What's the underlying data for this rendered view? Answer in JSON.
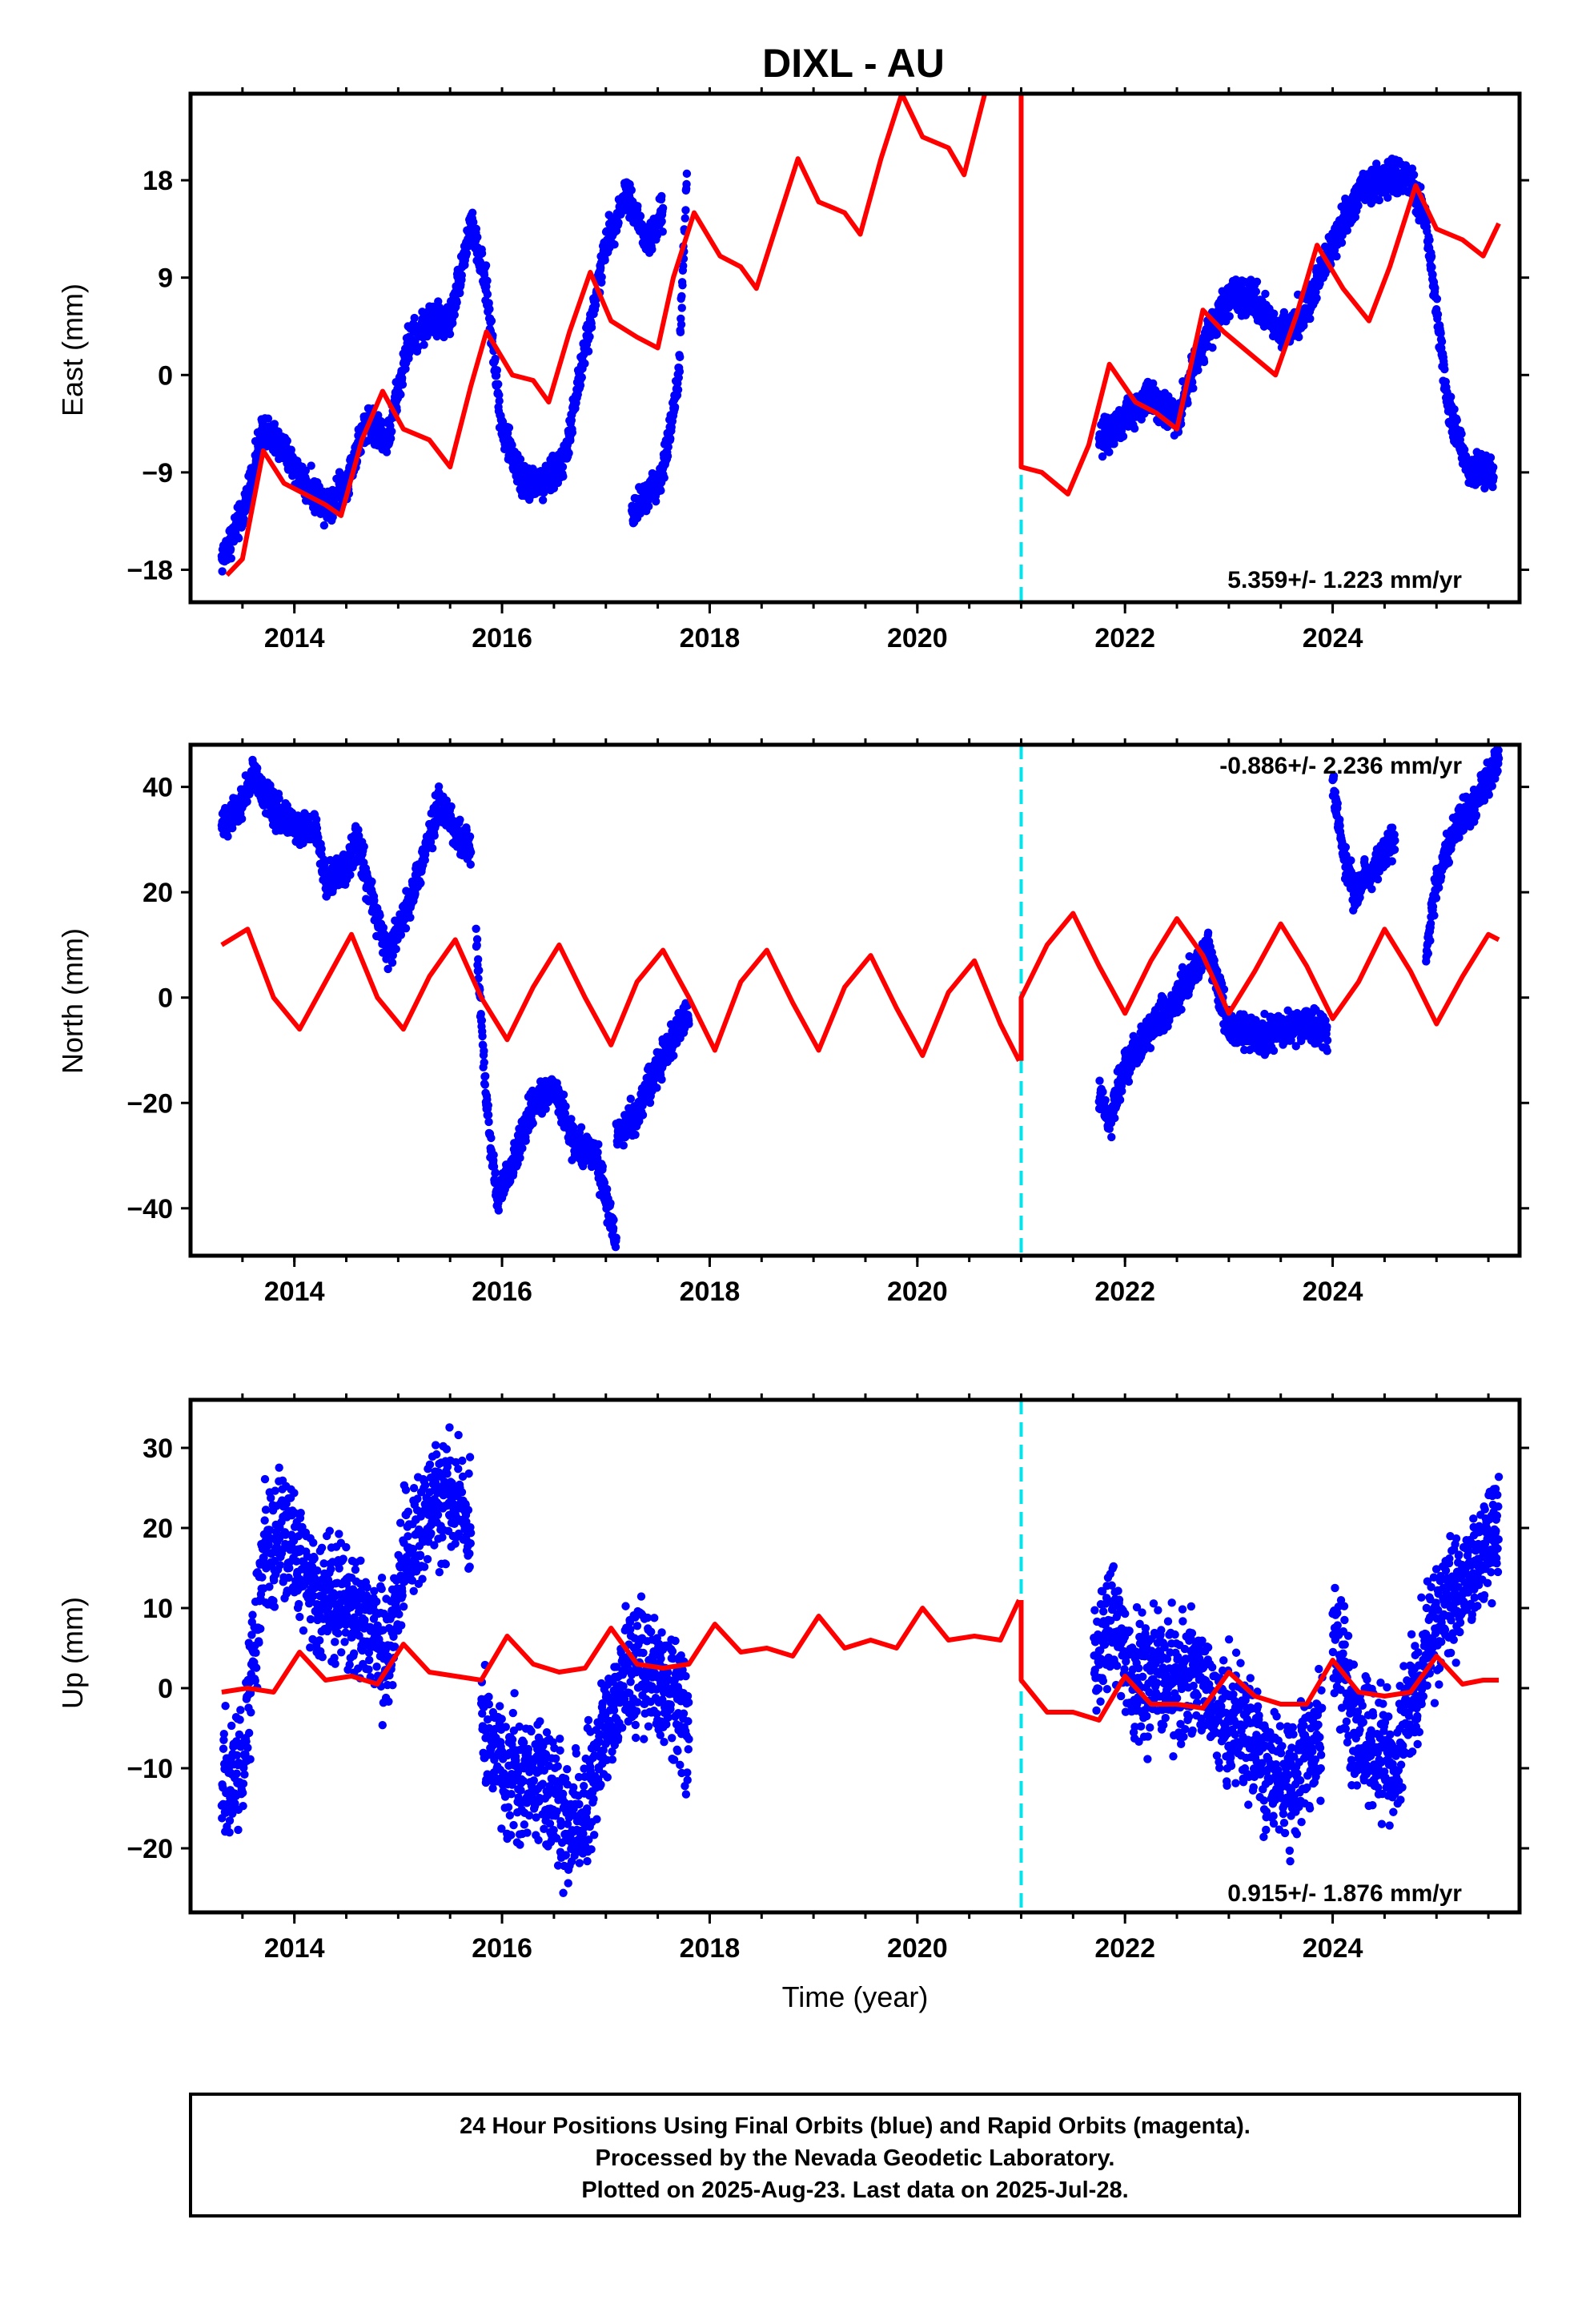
{
  "figure": {
    "title": "DIXL - AU",
    "xlabel": "Time (year)",
    "footer": [
      "24 Hour Positions Using Final Orbits (blue) and Rapid Orbits (magenta).",
      "Processed by the Nevada Geodetic Laboratory.",
      "Plotted on 2025-Aug-23. Last data on 2025-Jul-28."
    ]
  },
  "colors": {
    "final_orbits": "#0000ff",
    "model_fit": "#ff0000",
    "step_marker": "#00e5ee"
  },
  "chart_data": [
    {
      "type": "scatter",
      "ylabel": "East (mm)",
      "xlim": [
        2013.0,
        2025.8
      ],
      "ylim": [
        -21,
        26
      ],
      "yticks": [
        -18,
        -9,
        0,
        9,
        18
      ],
      "xticks": [
        2014,
        2016,
        2018,
        2020,
        2022,
        2024
      ],
      "grid": false,
      "step_epoch": 2021.0,
      "rate_label": "5.359+/- 1.223 mm/yr",
      "rate_position": "bottom-right",
      "series": [
        {
          "kind": "points",
          "segments": [
            {
              "x": [
                2013.3,
                2013.5,
                2013.7,
                2013.9,
                2014.1,
                2014.3,
                2014.5,
                2014.7,
                2014.9,
                2015.1,
                2015.3,
                2015.5,
                2015.7,
                2015.85,
                2016.0,
                2016.2,
                2016.4,
                2016.6,
                2016.85,
                2017.0,
                2017.2,
                2017.4,
                2017.55
              ],
              "y": [
                -17,
                -13,
                -5,
                -7,
                -10,
                -12,
                -10,
                -4,
                -6,
                3,
                5,
                5,
                14,
                8,
                -5,
                -10,
                -10,
                -8,
                5,
                12,
                17,
                12,
                15
              ]
            },
            {
              "x": [
                2017.25,
                2017.4,
                2017.55,
                2017.7,
                2017.78
              ],
              "y": [
                -13,
                -11,
                -9,
                0,
                18
              ]
            },
            {
              "x": [
                2021.75,
                2022.0,
                2022.25,
                2022.5,
                2022.75,
                2023.0,
                2023.25,
                2023.5,
                2023.75,
                2024.0,
                2024.25,
                2024.5,
                2024.75,
                2024.9,
                2025.1,
                2025.3,
                2025.55
              ],
              "y": [
                -6,
                -4,
                -2,
                -4,
                3,
                7,
                7,
                4,
                6,
                12,
                17,
                18,
                18,
                14,
                -2,
                -9,
                -9
              ]
            }
          ]
        },
        {
          "kind": "line",
          "segments": [
            {
              "x": [
                2013.35,
                2013.5,
                2013.7,
                2013.9,
                2014.1,
                2014.3,
                2014.45,
                2014.65,
                2014.85,
                2015.05,
                2015.3,
                2015.5,
                2015.7,
                2015.85,
                2016.1,
                2016.3,
                2016.45,
                2016.65,
                2016.85,
                2017.05,
                2017.3,
                2017.5,
                2017.65,
                2017.85,
                2018.1,
                2018.3,
                2018.45,
                2018.65,
                2018.85,
                2019.05,
                2019.3,
                2019.45,
                2019.65,
                2019.85,
                2020.05,
                2020.3,
                2020.45,
                2020.65
              ],
              "y": [
                -18.5,
                -17,
                -7,
                -10,
                -11,
                -12,
                -13,
                -6,
                -1.5,
                -5,
                -6,
                -8.5,
                -1,
                4,
                0,
                -0.5,
                -2.5,
                4,
                9.5,
                5,
                3.5,
                2.5,
                9,
                15,
                11,
                10,
                8,
                14,
                20,
                16,
                15,
                13,
                20,
                26,
                22,
                21,
                18.5,
                26
              ]
            },
            {
              "x": [
                2021.0,
                2021.0,
                2021.2,
                2021.45,
                2021.65,
                2021.85,
                2022.1,
                2022.3,
                2022.5,
                2022.75,
                2022.95,
                2023.2,
                2023.45,
                2023.65,
                2023.85,
                2024.1,
                2024.35,
                2024.55,
                2024.8,
                2025.0,
                2025.25,
                2025.45,
                2025.6
              ],
              "y": [
                26,
                -8.5,
                -9,
                -11,
                -6.5,
                1,
                -2.5,
                -3.5,
                -5,
                6,
                4,
                2,
                0,
                5.5,
                12,
                8,
                5,
                10,
                17.5,
                13.5,
                12.5,
                11,
                14
              ]
            }
          ]
        }
      ]
    },
    {
      "type": "scatter",
      "ylabel": "North (mm)",
      "xlim": [
        2013.0,
        2025.8
      ],
      "ylim": [
        -49,
        48
      ],
      "yticks": [
        -40,
        -20,
        0,
        20,
        40
      ],
      "xticks": [
        2014,
        2016,
        2018,
        2020,
        2022,
        2024
      ],
      "grid": false,
      "step_epoch": 2021.0,
      "rate_label": "-0.886+/- 2.236 mm/yr",
      "rate_position": "top-right",
      "series": [
        {
          "kind": "points",
          "segments": [
            {
              "x": [
                2013.3,
                2013.5,
                2013.6,
                2013.8,
                2014.0,
                2014.2,
                2014.3,
                2014.5,
                2014.6,
                2014.8,
                2014.9,
                2015.1,
                2015.3,
                2015.4,
                2015.6,
                2015.7
              ],
              "y": [
                33,
                37,
                42,
                36,
                32,
                33,
                22,
                25,
                30,
                15,
                8,
                18,
                30,
                37,
                30,
                28
              ]
            },
            {
              "x": [
                2015.75,
                2015.85,
                2015.95,
                2016.1,
                2016.3,
                2016.5,
                2016.7,
                2016.9,
                2017.1
              ],
              "y": [
                12,
                -20,
                -38,
                -32,
                -20,
                -17,
                -28,
                -30,
                -46
              ]
            },
            {
              "x": [
                2017.1,
                2017.3,
                2017.5,
                2017.7,
                2017.8
              ],
              "y": [
                -26,
                -22,
                -13,
                -6,
                -3
              ]
            },
            {
              "x": [
                2021.75,
                2021.85,
                2022.0,
                2022.2,
                2022.4,
                2022.6,
                2022.8,
                2023.0,
                2023.2,
                2023.5,
                2023.8,
                2023.95
              ],
              "y": [
                -18,
                -24,
                -13,
                -7,
                -3,
                3,
                10,
                -6,
                -7,
                -6,
                -5,
                -7
              ]
            },
            {
              "x": [
                2024.0,
                2024.1,
                2024.2,
                2024.4,
                2024.6
              ],
              "y": [
                40,
                28,
                20,
                25,
                30
              ]
            },
            {
              "x": [
                2024.9,
                2025.0,
                2025.2,
                2025.4,
                2025.6
              ],
              "y": [
                8,
                22,
                33,
                38,
                45
              ]
            }
          ]
        },
        {
          "kind": "line",
          "segments": [
            {
              "x": [
                2013.3,
                2013.55,
                2013.8,
                2014.05,
                2014.3,
                2014.55,
                2014.8,
                2015.05,
                2015.3,
                2015.55,
                2015.8,
                2016.05,
                2016.3,
                2016.55,
                2016.8,
                2017.05,
                2017.3,
                2017.55,
                2017.8,
                2018.05,
                2018.3,
                2018.55,
                2018.8,
                2019.05,
                2019.3,
                2019.55,
                2019.8,
                2020.05,
                2020.3,
                2020.55,
                2020.8,
                2020.98
              ],
              "y": [
                10,
                13,
                0,
                -6,
                3,
                12,
                0,
                -6,
                4,
                11,
                0,
                -8,
                2,
                10,
                0,
                -9,
                3,
                9,
                0,
                -10,
                3,
                9,
                -1,
                -10,
                2,
                8,
                -2,
                -11,
                1,
                7,
                -5,
                -12
              ]
            },
            {
              "x": [
                2021.0,
                2021.0,
                2021.25,
                2021.5,
                2021.75,
                2022.0,
                2022.25,
                2022.5,
                2022.75,
                2023.0,
                2023.25,
                2023.5,
                2023.75,
                2024.0,
                2024.25,
                2024.5,
                2024.75,
                2025.0,
                2025.25,
                2025.5,
                2025.6
              ],
              "y": [
                -12,
                0,
                10,
                16,
                6,
                -3,
                7,
                15,
                8,
                -3,
                5,
                14,
                6,
                -4,
                3,
                13,
                5,
                -5,
                4,
                12,
                11
              ]
            }
          ]
        }
      ]
    },
    {
      "type": "scatter",
      "ylabel": "Up (mm)",
      "xlim": [
        2013.0,
        2025.8
      ],
      "ylim": [
        -28,
        36
      ],
      "yticks": [
        -20,
        -10,
        0,
        10,
        20,
        30
      ],
      "xticks": [
        2014,
        2016,
        2018,
        2020,
        2022,
        2024
      ],
      "grid": false,
      "step_epoch": 2021.0,
      "rate_label": "0.915+/- 1.876 mm/yr",
      "rate_position": "bottom-right",
      "series": [
        {
          "kind": "points",
          "segments": [
            {
              "x": [
                2013.3,
                2013.5,
                2013.7,
                2013.9,
                2014.1,
                2014.3,
                2014.5,
                2014.7,
                2014.9,
                2015.1,
                2015.3,
                2015.5,
                2015.7
              ],
              "y": [
                -12,
                -10,
                17,
                20,
                15,
                10,
                12,
                8,
                5,
                18,
                22,
                25,
                20
              ]
            },
            {
              "x": [
                2015.8,
                2016.0,
                2016.2,
                2016.4,
                2016.6,
                2016.8,
                2017.0,
                2017.2,
                2017.4,
                2017.6,
                2017.8
              ],
              "y": [
                -5,
                -10,
                -12,
                -10,
                -18,
                -15,
                -5,
                2,
                3,
                0,
                -5
              ]
            },
            {
              "x": [
                2021.7,
                2021.9,
                2022.1,
                2022.3,
                2022.5,
                2022.7,
                2022.9,
                2023.1,
                2023.3,
                2023.5,
                2023.7,
                2023.9
              ],
              "y": [
                3,
                8,
                0,
                2,
                0,
                2,
                -4,
                -4,
                -8,
                -12,
                -10,
                -5
              ]
            },
            {
              "x": [
                2024.0,
                2024.2,
                2024.4,
                2024.6,
                2024.9,
                2025.1,
                2025.3,
                2025.5,
                2025.6
              ],
              "y": [
                8,
                -5,
                -8,
                -10,
                5,
                10,
                15,
                18,
                20
              ]
            }
          ]
        },
        {
          "kind": "line",
          "segments": [
            {
              "x": [
                2013.3,
                2013.55,
                2013.8,
                2014.05,
                2014.3,
                2014.55,
                2014.8,
                2015.05,
                2015.3,
                2015.55,
                2015.8,
                2016.05,
                2016.3,
                2016.55,
                2016.8,
                2017.05,
                2017.3,
                2017.55,
                2017.8,
                2018.05,
                2018.3,
                2018.55,
                2018.8,
                2019.05,
                2019.3,
                2019.55,
                2019.8,
                2020.05,
                2020.3,
                2020.55,
                2020.8,
                2020.98
              ],
              "y": [
                -0.5,
                0,
                -0.5,
                4.5,
                1,
                1.5,
                0.5,
                5.5,
                2,
                1.5,
                1,
                6.5,
                3,
                2,
                2.5,
                7.5,
                3,
                2.5,
                3,
                8,
                4.5,
                5,
                4,
                9,
                5,
                6,
                5,
                10,
                6,
                6.5,
                6,
                11
              ]
            },
            {
              "x": [
                2021.0,
                2021.0,
                2021.25,
                2021.5,
                2021.75,
                2022.0,
                2022.25,
                2022.5,
                2022.75,
                2023.0,
                2023.25,
                2023.5,
                2023.75,
                2024.0,
                2024.25,
                2024.5,
                2024.75,
                2025.0,
                2025.25,
                2025.45,
                2025.6
              ],
              "y": [
                11,
                1,
                -3,
                -3,
                -4,
                1.5,
                -2,
                -2,
                -2.5,
                2,
                -1,
                -2,
                -2,
                3.5,
                -0.5,
                -1,
                -0.5,
                4,
                0.5,
                1,
                1
              ]
            }
          ]
        }
      ]
    }
  ]
}
